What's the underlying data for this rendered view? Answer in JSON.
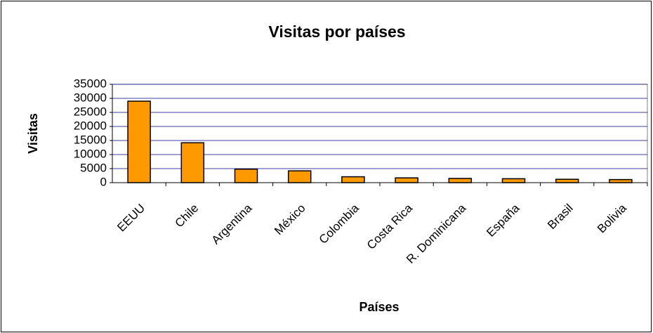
{
  "chart_data": {
    "type": "bar",
    "title": "Visitas por países",
    "x_label": "Países",
    "y_label": "Visitas",
    "categories": [
      "EEUU",
      "Chile",
      "Argentina",
      "México",
      "Colombia",
      "Costa Rica",
      "R. Dominicana",
      "España",
      "Brasil",
      "Bolivia"
    ],
    "values": [
      29000,
      14200,
      4800,
      4200,
      2100,
      1700,
      1500,
      1400,
      1200,
      1100
    ],
    "color": "#ff9900",
    "ylim": [
      0,
      35000
    ],
    "yticks": [
      0,
      5000,
      10000,
      15000,
      20000,
      25000,
      30000,
      35000
    ],
    "grid": true
  }
}
